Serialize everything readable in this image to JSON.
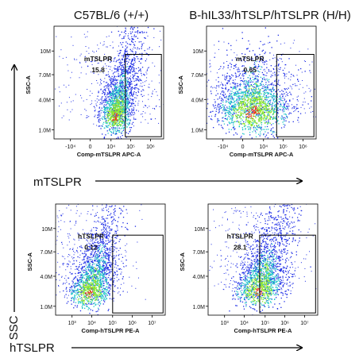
{
  "figure": {
    "column_titles": [
      "C57BL/6 (+/+)",
      "B-hIL33/hTSLP/hTSLPR (H/H)"
    ],
    "row_labels": [
      "mTSLPR",
      "hTSLPR"
    ],
    "y_axis_label": "SSC"
  },
  "colors": {
    "density_low": "#1f2ee6",
    "density_mid": "#22c7c9",
    "density_mid2": "#8ee628",
    "density_high": "#e8301b",
    "gate": "#000000"
  },
  "chart_data": [
    {
      "type": "scatter",
      "panel": "mTSLPR in C57BL/6 (+/+)",
      "xlabel": "Comp-mTSLPR APC-A",
      "ylabel": "SSC-A",
      "x_ticks": [
        "-10⁴",
        "0",
        "10⁴",
        "10⁵",
        "10⁶"
      ],
      "y_ticks": [
        "1.0M",
        "4.0M",
        "7.0M",
        "10M"
      ],
      "gate_label": "mTSLPR",
      "gate_value": "15.8",
      "cluster": {
        "x_center": "10⁴",
        "y_center": "2.0M"
      }
    },
    {
      "type": "scatter",
      "panel": "mTSLPR in B-hIL33/hTSLP/hTSLPR (H/H)",
      "xlabel": "Comp-mTSLPR APC-A",
      "ylabel": "SSC-A",
      "x_ticks": [
        "-10⁴",
        "0",
        "10⁴",
        "10⁵",
        "10⁶"
      ],
      "y_ticks": [
        "1.0M",
        "4.0M",
        "7.0M",
        "10M"
      ],
      "gate_label": "mTSLPR",
      "gate_value": "0.65",
      "cluster": {
        "x_center": "0",
        "y_center": "3.0M"
      }
    },
    {
      "type": "scatter",
      "panel": "hTSLPR in C57BL/6 (+/+)",
      "xlabel": "Comp-hTSLPR PE-A",
      "ylabel": "SSC-A",
      "x_ticks": [
        "10³",
        "10⁴",
        "10⁵",
        "10⁶",
        "10⁷"
      ],
      "y_ticks": [
        "1.0M",
        "4.0M",
        "7.0M",
        "10M"
      ],
      "gate_label": "hTSLPR",
      "gate_value": "0.12",
      "cluster": {
        "x_center": "10⁴",
        "y_center": "2.0M"
      }
    },
    {
      "type": "scatter",
      "panel": "hTSLPR in B-hIL33/hTSLP/hTSLPR (H/H)",
      "xlabel": "Comp-hTSLPR PE-A",
      "ylabel": "SSC-A",
      "x_ticks": [
        "10³",
        "10⁴",
        "10⁵",
        "10⁶",
        "10⁷"
      ],
      "y_ticks": [
        "1.0M",
        "4.0M",
        "7.0M",
        "10M"
      ],
      "gate_label": "hTSLPR",
      "gate_value": "28.1",
      "cluster": {
        "x_center": "10⁵",
        "y_center": "2.0M"
      }
    }
  ]
}
